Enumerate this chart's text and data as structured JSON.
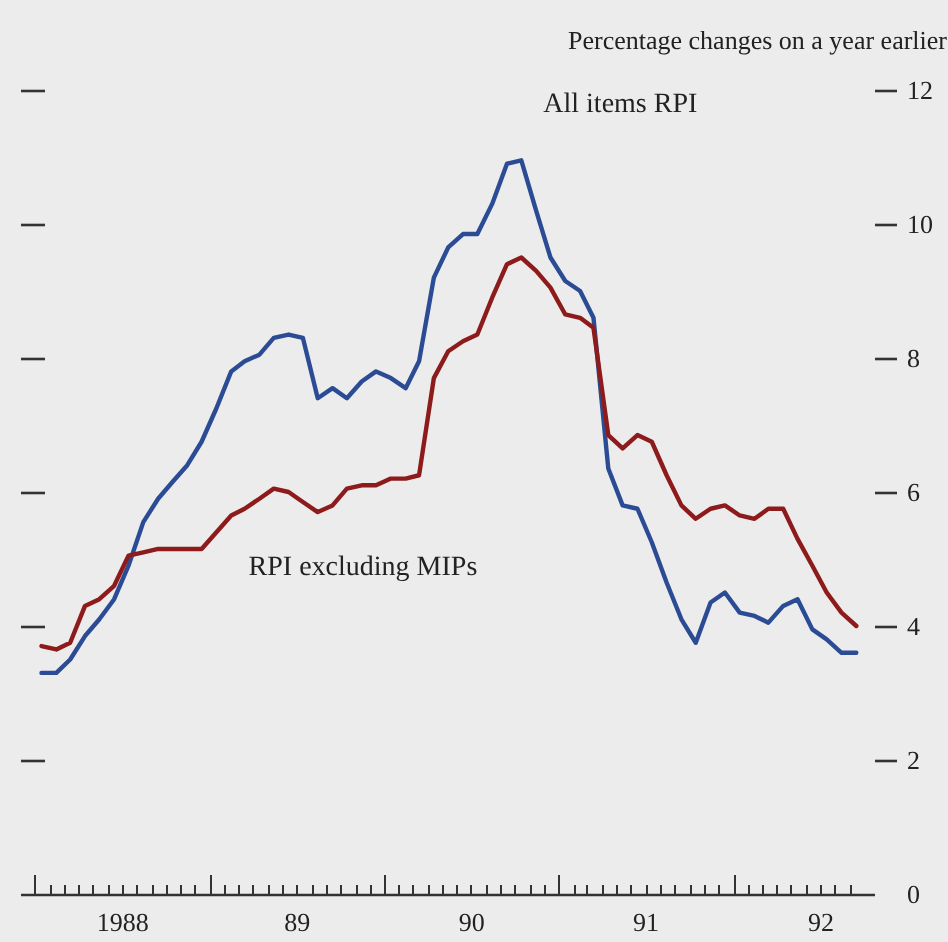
{
  "chart_data": {
    "type": "line",
    "ylabel": "Percentage changes on a year earlier",
    "x": [
      "1988-01-15",
      "1988-02-15",
      "1988-03-15",
      "1988-04-15",
      "1988-05-15",
      "1988-06-15",
      "1988-07-15",
      "1988-08-15",
      "1988-09-15",
      "1988-10-15",
      "1988-11-15",
      "1988-12-15",
      "1989-01-15",
      "1989-02-15",
      "1989-03-15",
      "1989-04-15",
      "1989-05-15",
      "1989-06-15",
      "1989-07-15",
      "1989-08-15",
      "1989-09-15",
      "1989-10-15",
      "1989-11-15",
      "1989-12-15",
      "1990-01-15",
      "1990-02-15",
      "1990-03-15",
      "1990-04-15",
      "1990-05-15",
      "1990-06-15",
      "1990-07-15",
      "1990-08-15",
      "1990-09-15",
      "1990-10-15",
      "1990-11-15",
      "1990-12-15",
      "1991-01-15",
      "1991-02-15",
      "1991-03-15",
      "1991-04-15",
      "1991-05-15",
      "1991-06-15",
      "1991-07-15",
      "1991-08-15",
      "1991-09-15",
      "1991-10-15",
      "1991-11-15",
      "1991-12-15",
      "1992-01-15",
      "1992-02-15",
      "1992-03-15",
      "1992-04-15",
      "1992-05-15",
      "1992-06-15",
      "1992-07-15",
      "1992-08-15",
      "1992-09-15"
    ],
    "xlim": [
      "1987-12-01",
      "1992-10-22"
    ],
    "xticks": [
      {
        "value": "1988-01",
        "label": null
      },
      {
        "value": "1988-02",
        "label": null
      },
      {
        "value": "1988-03",
        "label": null
      },
      {
        "value": "1988-04",
        "label": null
      },
      {
        "value": "1988-05",
        "label": null
      },
      {
        "value": "1988-06",
        "label": null
      },
      {
        "value": "1988-07",
        "label": "1988"
      },
      {
        "value": "1988-08",
        "label": null
      },
      {
        "value": "1988-09",
        "label": null
      },
      {
        "value": "1988-10",
        "label": null
      },
      {
        "value": "1988-11",
        "label": null
      },
      {
        "value": "1988-12",
        "label": null
      },
      {
        "value": "1989-01",
        "label": null
      },
      {
        "value": "1989-02",
        "label": null
      },
      {
        "value": "1989-03",
        "label": null
      },
      {
        "value": "1989-04",
        "label": null
      },
      {
        "value": "1989-05",
        "label": null
      },
      {
        "value": "1989-06",
        "label": null
      },
      {
        "value": "1989-07",
        "label": "89"
      },
      {
        "value": "1989-08",
        "label": null
      },
      {
        "value": "1989-09",
        "label": null
      },
      {
        "value": "1989-10",
        "label": null
      },
      {
        "value": "1989-11",
        "label": null
      },
      {
        "value": "1989-12",
        "label": null
      },
      {
        "value": "1990-01",
        "label": null
      },
      {
        "value": "1990-02",
        "label": null
      },
      {
        "value": "1990-03",
        "label": null
      },
      {
        "value": "1990-04",
        "label": null
      },
      {
        "value": "1990-05",
        "label": null
      },
      {
        "value": "1990-06",
        "label": null
      },
      {
        "value": "1990-07",
        "label": "90"
      },
      {
        "value": "1990-08",
        "label": null
      },
      {
        "value": "1990-09",
        "label": null
      },
      {
        "value": "1990-10",
        "label": null
      },
      {
        "value": "1990-11",
        "label": null
      },
      {
        "value": "1990-12",
        "label": null
      },
      {
        "value": "1991-01",
        "label": null
      },
      {
        "value": "1991-02",
        "label": null
      },
      {
        "value": "1991-03",
        "label": null
      },
      {
        "value": "1991-04",
        "label": null
      },
      {
        "value": "1991-05",
        "label": null
      },
      {
        "value": "1991-06",
        "label": null
      },
      {
        "value": "1991-07",
        "label": "91"
      },
      {
        "value": "1991-08",
        "label": null
      },
      {
        "value": "1991-09",
        "label": null
      },
      {
        "value": "1991-10",
        "label": null
      },
      {
        "value": "1991-11",
        "label": null
      },
      {
        "value": "1991-12",
        "label": null
      },
      {
        "value": "1992-01",
        "label": null
      },
      {
        "value": "1992-02",
        "label": null
      },
      {
        "value": "1992-03",
        "label": null
      },
      {
        "value": "1992-04",
        "label": null
      },
      {
        "value": "1992-05",
        "label": null
      },
      {
        "value": "1992-06",
        "label": null
      },
      {
        "value": "1992-07",
        "label": "92"
      },
      {
        "value": "1992-08",
        "label": null
      },
      {
        "value": "1992-09",
        "label": null
      }
    ],
    "ylim": [
      0,
      12
    ],
    "yticks": [
      0,
      2,
      4,
      6,
      8,
      10,
      12
    ],
    "series": [
      {
        "name": "All items RPI",
        "color": "#2b4c95",
        "values": [
          3.3,
          3.3,
          3.5,
          3.85,
          4.1,
          4.4,
          4.9,
          5.55,
          5.9,
          6.15,
          6.4,
          6.75,
          7.25,
          7.8,
          7.95,
          8.05,
          8.3,
          8.35,
          8.3,
          7.4,
          7.55,
          7.4,
          7.65,
          7.8,
          7.7,
          7.55,
          7.95,
          9.2,
          9.65,
          9.85,
          9.85,
          10.3,
          10.9,
          10.95,
          10.2,
          9.5,
          9.15,
          9.0,
          8.6,
          6.35,
          5.8,
          5.75,
          5.25,
          4.65,
          4.1,
          3.75,
          4.35,
          4.5,
          4.2,
          4.15,
          4.05,
          4.3,
          4.4,
          3.95,
          3.8,
          3.6,
          3.6
        ]
      },
      {
        "name": "RPI excluding MIPs",
        "color": "#8e1b1b",
        "values": [
          3.7,
          3.65,
          3.75,
          4.3,
          4.4,
          4.6,
          5.05,
          5.1,
          5.15,
          5.15,
          5.15,
          5.15,
          5.4,
          5.65,
          5.75,
          5.9,
          6.05,
          6.0,
          5.85,
          5.7,
          5.8,
          6.05,
          6.1,
          6.1,
          6.2,
          6.2,
          6.25,
          7.7,
          8.1,
          8.25,
          8.35,
          8.9,
          9.4,
          9.5,
          9.3,
          9.05,
          8.65,
          8.6,
          8.45,
          6.85,
          6.65,
          6.85,
          6.75,
          6.25,
          5.8,
          5.6,
          5.75,
          5.8,
          5.65,
          5.6,
          5.75,
          5.75,
          5.3,
          4.9,
          4.5,
          4.2,
          4.0
        ]
      }
    ]
  }
}
